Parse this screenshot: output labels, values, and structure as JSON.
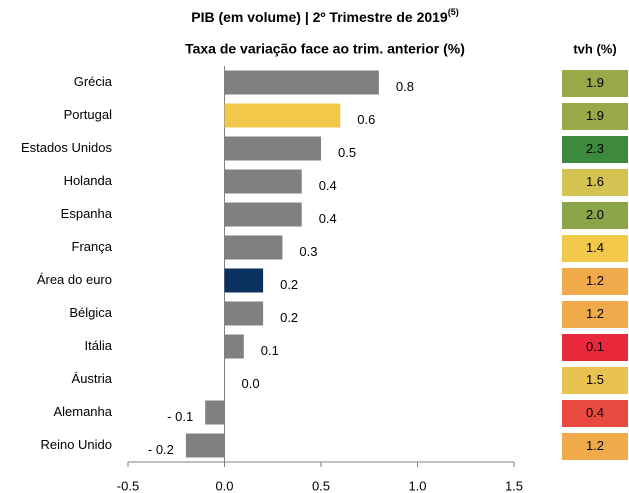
{
  "chart_data": {
    "type": "bar",
    "title": "PIB (em volume) | 2º Trimestre de 2019",
    "title_superscript": "(5)",
    "subtitle": "Taxa de variação face ao trim. anterior (%)",
    "categories": [
      "Grécia",
      "Portugal",
      "Estados Unidos",
      "Holanda",
      "Espanha",
      "França",
      "Área do euro",
      "Bélgica",
      "Itália",
      "Áustria",
      "Alemanha",
      "Reino Unido"
    ],
    "values": [
      0.8,
      0.6,
      0.5,
      0.4,
      0.4,
      0.3,
      0.2,
      0.2,
      0.1,
      0.0,
      -0.1,
      -0.2
    ],
    "value_labels": [
      "0.8",
      "0.6",
      "0.5",
      "0.4",
      "0.4",
      "0.3",
      "0.2",
      "0.2",
      "0.1",
      "0.0",
      "- 0.1",
      "- 0.2"
    ],
    "colors": [
      "#808080",
      "#f2c84b",
      "#808080",
      "#808080",
      "#808080",
      "#808080",
      "#0b3160",
      "#808080",
      "#808080",
      "#808080",
      "#808080",
      "#808080"
    ],
    "xlim": [
      -0.5,
      1.5
    ],
    "xticks": [
      -0.5,
      {
        "value": 0,
        "label": "0.0"
      },
      0.5,
      {
        "value": 1,
        "label": "1.0"
      },
      1.5
    ],
    "tvh": {
      "title": "tvh (%)",
      "values": [
        1.9,
        1.9,
        2.3,
        1.6,
        2.0,
        1.4,
        1.2,
        1.2,
        0.1,
        1.5,
        0.4,
        1.2
      ],
      "value_labels": [
        "1.9",
        "1.9",
        "2.3",
        "1.6",
        "2.0",
        "1.4",
        "1.2",
        "1.2",
        "0.1",
        "1.5",
        "0.4",
        "1.2"
      ],
      "colors": [
        "#9aa84a",
        "#9aa84a",
        "#3d8a3f",
        "#d4c353",
        "#8aa54a",
        "#f2c84b",
        "#f0a94b",
        "#f0a94b",
        "#e8283b",
        "#e8c34f",
        "#e84a3f",
        "#f0a94b"
      ]
    }
  }
}
